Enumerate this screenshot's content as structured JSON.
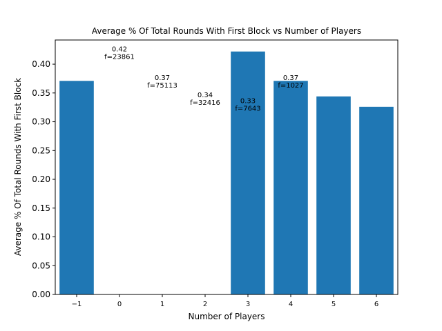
{
  "chart_data": {
    "type": "bar",
    "title": "Average % Of Total Rounds With First Block vs Number of Players",
    "xlabel": "Number of Players",
    "ylabel": "Average % Of Total Rounds With First Block",
    "x_tick_labels": [
      "−1",
      "0",
      "1",
      "2",
      "3",
      "4",
      "5",
      "6"
    ],
    "y_tick_labels": [
      "0.00",
      "0.05",
      "0.10",
      "0.15",
      "0.20",
      "0.25",
      "0.30",
      "0.35",
      "0.40"
    ],
    "ylim": [
      0,
      0.442
    ],
    "xlim": [
      -1.5,
      6.5
    ],
    "grid": false,
    "bars": [
      {
        "x": -1,
        "value": 0.371
      },
      {
        "x": 3,
        "value": 0.422
      },
      {
        "x": 4,
        "value": 0.371
      },
      {
        "x": 5,
        "value": 0.344
      },
      {
        "x": 6,
        "value": 0.326
      }
    ],
    "annotations": [
      {
        "x": 0,
        "y": 0.42,
        "value_text": "0.42",
        "freq_text": "f=23861"
      },
      {
        "x": 1,
        "y": 0.37,
        "value_text": "0.37",
        "freq_text": "f=75113"
      },
      {
        "x": 2,
        "y": 0.34,
        "value_text": "0.34",
        "freq_text": "f=32416"
      },
      {
        "x": 3,
        "y": 0.33,
        "value_text": "0.33",
        "freq_text": "f=7643"
      },
      {
        "x": 4,
        "y": 0.37,
        "value_text": "0.37",
        "freq_text": "f=1027"
      }
    ],
    "bar_color": "#1f77b4"
  }
}
